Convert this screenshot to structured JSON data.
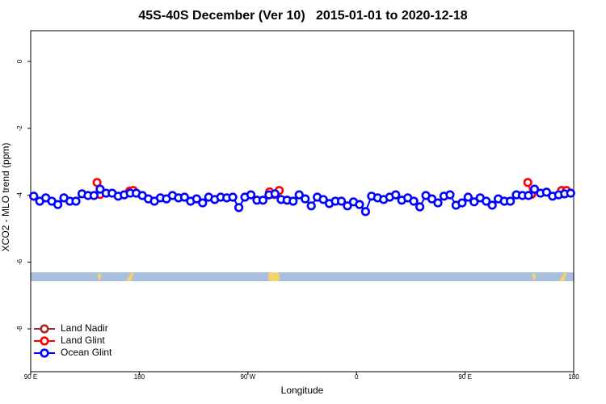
{
  "chart_data": {
    "type": "line",
    "title": "45S-40S December (Ver 10)   2015-01-01 to 2020-12-18",
    "x_label": "Longitude",
    "y_label": "XCO2 - MLO trend (ppm)",
    "xlim": [
      90,
      540
    ],
    "xticks": [
      {
        "value": 90,
        "label": "90 E"
      },
      {
        "value": 180,
        "label": "180"
      },
      {
        "value": 270,
        "label": "90 W"
      },
      {
        "value": 360,
        "label": "0"
      },
      {
        "value": 450,
        "label": "90 E"
      },
      {
        "value": 540,
        "label": "180"
      }
    ],
    "ylim": [
      -9.28,
      0.92
    ],
    "yticks": [
      0,
      -2,
      -4,
      -6,
      -8
    ],
    "legend": "bottom-left",
    "series": [
      {
        "name": "Land Nadir",
        "color": "#a52a2a",
        "x": [],
        "values": []
      },
      {
        "name": "Land Glint",
        "color": "#ff0000",
        "x": [
          145,
          147.5,
          172,
          175,
          288,
          292,
          296,
          502,
          505,
          530,
          534
        ],
        "values": [
          -3.62,
          -3.98,
          -3.88,
          -3.86,
          -3.9,
          -3.98,
          -3.86,
          -3.62,
          -3.98,
          -3.86,
          -3.86
        ]
      },
      {
        "name": "Ocean Glint",
        "color": "#0000ff",
        "x": [
          92.5,
          97.5,
          102.5,
          107.5,
          112.5,
          117.5,
          122.5,
          127.5,
          132.5,
          137.5,
          142.5,
          147.5,
          152.5,
          157.5,
          162.5,
          167.5,
          172.5,
          177.5,
          182.5,
          187.5,
          192.5,
          197.5,
          202.5,
          207.5,
          212.5,
          217.5,
          222.5,
          227.5,
          232.5,
          237.5,
          242.5,
          247.5,
          252.5,
          257.5,
          262.5,
          267.5,
          272.5,
          277.5,
          282.5,
          287.5,
          292.5,
          297.5,
          302.5,
          307.5,
          312.5,
          317.5,
          322.5,
          327.5,
          332.5,
          337.5,
          342.5,
          347.5,
          352.5,
          357.5,
          362.5,
          367.5,
          372.5,
          377.5,
          382.5,
          387.5,
          392.5,
          397.5,
          402.5,
          407.5,
          412.5,
          417.5,
          422.5,
          427.5,
          432.5,
          437.5,
          442.5,
          447.5,
          452.5,
          457.5,
          462.5,
          467.5,
          472.5,
          477.5,
          482.5,
          487.5,
          492.5,
          497.5,
          502.5,
          507.5,
          512.5,
          517.5,
          522.5,
          527.5,
          532.5,
          537.5
        ],
        "values": [
          -4.03,
          -4.18,
          -4.08,
          -4.18,
          -4.28,
          -4.08,
          -4.18,
          -4.18,
          -3.96,
          -4.01,
          -4.01,
          -3.82,
          -3.94,
          -3.94,
          -4.03,
          -3.99,
          -3.94,
          -3.94,
          -4.01,
          -4.11,
          -4.18,
          -4.08,
          -4.11,
          -4.01,
          -4.08,
          -4.06,
          -4.18,
          -4.11,
          -4.23,
          -4.06,
          -4.13,
          -4.06,
          -4.08,
          -4.06,
          -4.37,
          -4.06,
          -3.99,
          -4.15,
          -4.15,
          -3.99,
          -3.96,
          -4.13,
          -4.15,
          -4.18,
          -3.99,
          -4.11,
          -4.32,
          -4.06,
          -4.13,
          -4.25,
          -4.18,
          -4.18,
          -4.32,
          -4.2,
          -4.28,
          -4.49,
          -4.03,
          -4.08,
          -4.13,
          -4.06,
          -3.99,
          -4.15,
          -4.08,
          -4.18,
          -4.35,
          -4.01,
          -4.11,
          -4.23,
          -4.03,
          -3.99,
          -4.3,
          -4.23,
          -4.06,
          -4.2,
          -4.08,
          -4.18,
          -4.3,
          -4.11,
          -4.18,
          -4.18,
          -3.99,
          -4.01,
          -4.01,
          -3.82,
          -3.94,
          -3.91,
          -4.03,
          -3.99,
          -3.96,
          -3.94
        ]
      }
    ]
  }
}
